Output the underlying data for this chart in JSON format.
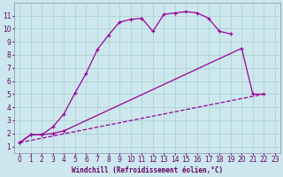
{
  "background_color": "#cce8ee",
  "line_color": "#990099",
  "grid_color": "#aacccc",
  "xlabel": "Windchill (Refroidissement éolien,°C)",
  "xlabel_color": "#660066",
  "tick_color": "#660066",
  "xlim": [
    -0.5,
    23.5
  ],
  "ylim": [
    0.5,
    12.0
  ],
  "xticks": [
    0,
    1,
    2,
    3,
    4,
    5,
    6,
    7,
    8,
    9,
    10,
    11,
    12,
    13,
    14,
    15,
    16,
    17,
    18,
    19,
    20,
    21,
    22,
    23
  ],
  "yticks": [
    1,
    2,
    3,
    4,
    5,
    6,
    7,
    8,
    9,
    10,
    11
  ],
  "curve1_x": [
    0,
    1,
    2,
    3,
    4,
    5,
    6,
    7,
    8,
    9,
    10,
    11,
    12,
    13,
    14,
    15,
    16,
    17,
    18,
    19
  ],
  "curve1_y": [
    1.3,
    1.9,
    1.9,
    2.5,
    3.5,
    5.1,
    6.6,
    8.4,
    9.5,
    10.5,
    10.7,
    10.8,
    9.8,
    11.1,
    11.2,
    11.3,
    11.2,
    10.8,
    9.8,
    9.6
  ],
  "curve2_x": [
    0,
    1,
    2,
    3,
    4,
    20,
    21,
    22
  ],
  "curve2_y": [
    1.3,
    1.9,
    1.9,
    2.0,
    2.2,
    8.5,
    5.0,
    5.0
  ],
  "curve3_x": [
    0,
    22
  ],
  "curve3_y": [
    1.3,
    5.0
  ]
}
